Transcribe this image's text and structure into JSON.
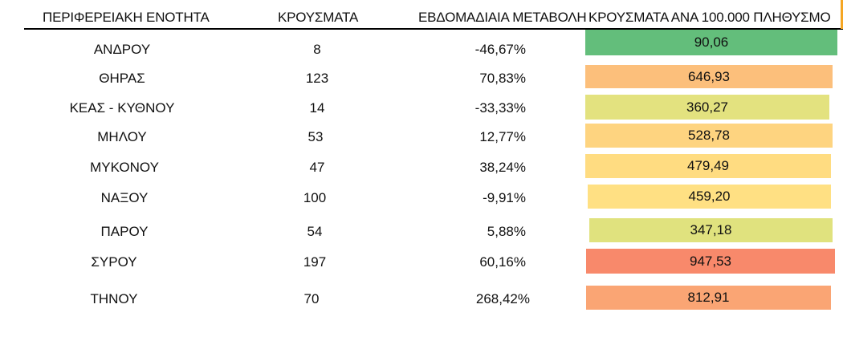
{
  "table": {
    "headers": {
      "region": "ΠΕΡΙΦΕΡΕΙΑΚΗ ΕΝΟΤΗΤΑ",
      "cases": "ΚΡΟΥΣΜΑΤΑ",
      "weekly_change": "ΕΒΔΟΜΑΔΙΑΙΑ ΜΕΤΑΒΟΛΗ",
      "cases_per_100k": "ΚΡΟΥΣΜΑΤΑ ΑΝΑ 100.000 ΠΛΗΘΥΣΜΟ"
    },
    "rows": [
      {
        "region": "ΑΝΔΡΟΥ",
        "cases": "8",
        "weekly_change": "-46,67%",
        "cases_per_100k": "90,06",
        "fill_color": "#63be7b"
      },
      {
        "region": "ΘΗΡΑΣ",
        "cases": "123",
        "weekly_change": "70,83%",
        "cases_per_100k": "646,93",
        "fill_color": "#fcbf7b"
      },
      {
        "region": "ΚΕΑΣ - ΚΥΘΝΟΥ",
        "cases": "14",
        "weekly_change": "-33,33%",
        "cases_per_100k": "360,27",
        "fill_color": "#e3e27f"
      },
      {
        "region": "ΜΗΛΟΥ",
        "cases": "53",
        "weekly_change": "12,77%",
        "cases_per_100k": "528,78",
        "fill_color": "#fed480"
      },
      {
        "region": "ΜΥΚΟΝΟΥ",
        "cases": "47",
        "weekly_change": "38,24%",
        "cases_per_100k": "479,49",
        "fill_color": "#ffdc81"
      },
      {
        "region": "ΝΑΞΟΥ",
        "cases": "100",
        "weekly_change": "-9,91%",
        "cases_per_100k": "459,20",
        "fill_color": "#ffe083"
      },
      {
        "region": "ΠΑΡΟΥ",
        "cases": "54",
        "weekly_change": "5,88%",
        "cases_per_100k": "347,18",
        "fill_color": "#e0e27e"
      },
      {
        "region": "ΣΥΡΟΥ",
        "cases": "197",
        "weekly_change": "60,16%",
        "cases_per_100k": "947,53",
        "fill_color": "#f8896b"
      },
      {
        "region": "ΤΗΝΟΥ",
        "cases": "70",
        "weekly_change": "268,42%",
        "cases_per_100k": "812,91",
        "fill_color": "#faa574"
      }
    ]
  }
}
